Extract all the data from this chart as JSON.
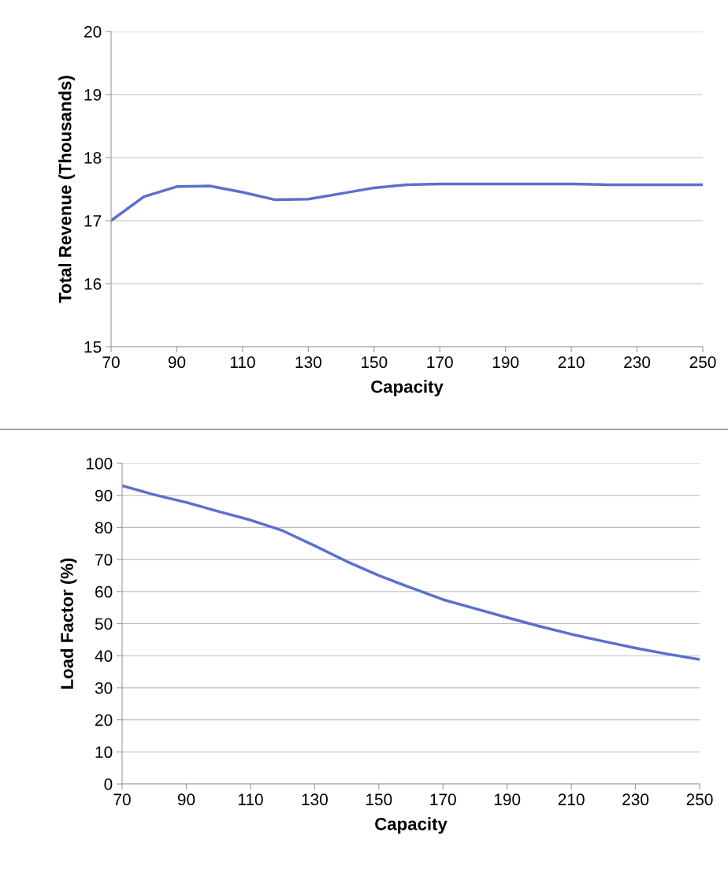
{
  "chart_data": [
    {
      "type": "line",
      "xlabel": "Capacity",
      "ylabel": "Total Revenue (Thousands)",
      "x": [
        70,
        80,
        90,
        100,
        110,
        120,
        130,
        140,
        150,
        160,
        170,
        180,
        190,
        200,
        210,
        220,
        230,
        240,
        250
      ],
      "series": [
        {
          "color": "#5b6fd0",
          "values": [
            17.0,
            17.38,
            17.54,
            17.55,
            17.45,
            17.33,
            17.34,
            17.43,
            17.52,
            17.57,
            17.58,
            17.58,
            17.58,
            17.58,
            17.58,
            17.57,
            17.57,
            17.57,
            17.57
          ]
        }
      ],
      "xlim": [
        70,
        250
      ],
      "xticks": [
        70,
        90,
        110,
        130,
        150,
        170,
        190,
        210,
        230,
        250
      ],
      "ylim": [
        15,
        20
      ],
      "yticks": [
        15,
        16,
        17,
        18,
        19,
        20
      ],
      "grid": "y",
      "marker": "none",
      "line_style": "solid"
    },
    {
      "type": "line",
      "xlabel": "Capacity",
      "ylabel": "Load Factor (%)",
      "x": [
        70,
        80,
        90,
        100,
        110,
        120,
        130,
        140,
        150,
        160,
        170,
        180,
        190,
        200,
        210,
        220,
        230,
        240,
        250
      ],
      "series": [
        {
          "color": "#5b6fd0",
          "values": [
            93.0,
            90.2,
            87.8,
            85.0,
            82.3,
            79.0,
            74.3,
            69.4,
            65.0,
            61.2,
            57.5,
            54.7,
            51.9,
            49.2,
            46.7,
            44.5,
            42.4,
            40.5,
            38.8
          ]
        }
      ],
      "xlim": [
        70,
        250
      ],
      "xticks": [
        70,
        90,
        110,
        130,
        150,
        170,
        190,
        210,
        230,
        250
      ],
      "ylim": [
        0,
        100
      ],
      "yticks": [
        0,
        10,
        20,
        30,
        40,
        50,
        60,
        70,
        80,
        90,
        100
      ],
      "grid": "y",
      "marker": "none",
      "line_style": "solid"
    }
  ]
}
